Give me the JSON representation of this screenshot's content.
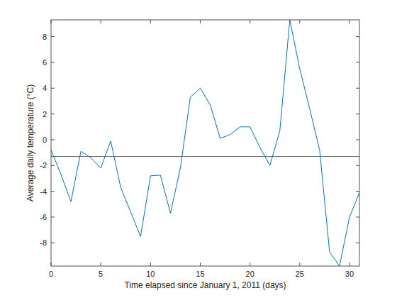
{
  "chart_data": {
    "type": "line",
    "x_label": "Time elapsed since January 1, 2011 (days)",
    "y_label": "Average  daily  temperature  (°C)",
    "x": [
      0,
      1,
      2,
      3,
      4,
      5,
      6,
      7,
      8,
      9,
      10,
      11,
      12,
      13,
      14,
      15,
      16,
      17,
      18,
      19,
      20,
      21,
      22,
      23,
      24,
      25,
      26,
      27,
      28,
      29,
      30,
      31
    ],
    "values": [
      -0.8,
      -2.7,
      -4.8,
      -0.9,
      -1.4,
      -2.2,
      -0.1,
      -3.7,
      -5.6,
      -7.5,
      -2.8,
      -2.75,
      -5.7,
      -2.2,
      3.3,
      4.0,
      2.7,
      0.1,
      0.4,
      1.0,
      1.0,
      -0.6,
      -2.0,
      0.7,
      9.3,
      5.5,
      2.4,
      -0.8,
      -8.7,
      -9.8,
      -6.0,
      -4.1
    ],
    "color": "#0072bd",
    "mean_line": -1.3,
    "xlim": [
      0,
      31
    ],
    "xticks": [
      0,
      5,
      10,
      15,
      20,
      25,
      30
    ],
    "ylim": [
      -9.8,
      9.3
    ],
    "yticks": [
      -8,
      -6,
      -4,
      -2,
      0,
      2,
      4,
      6,
      8
    ],
    "grid": false
  }
}
